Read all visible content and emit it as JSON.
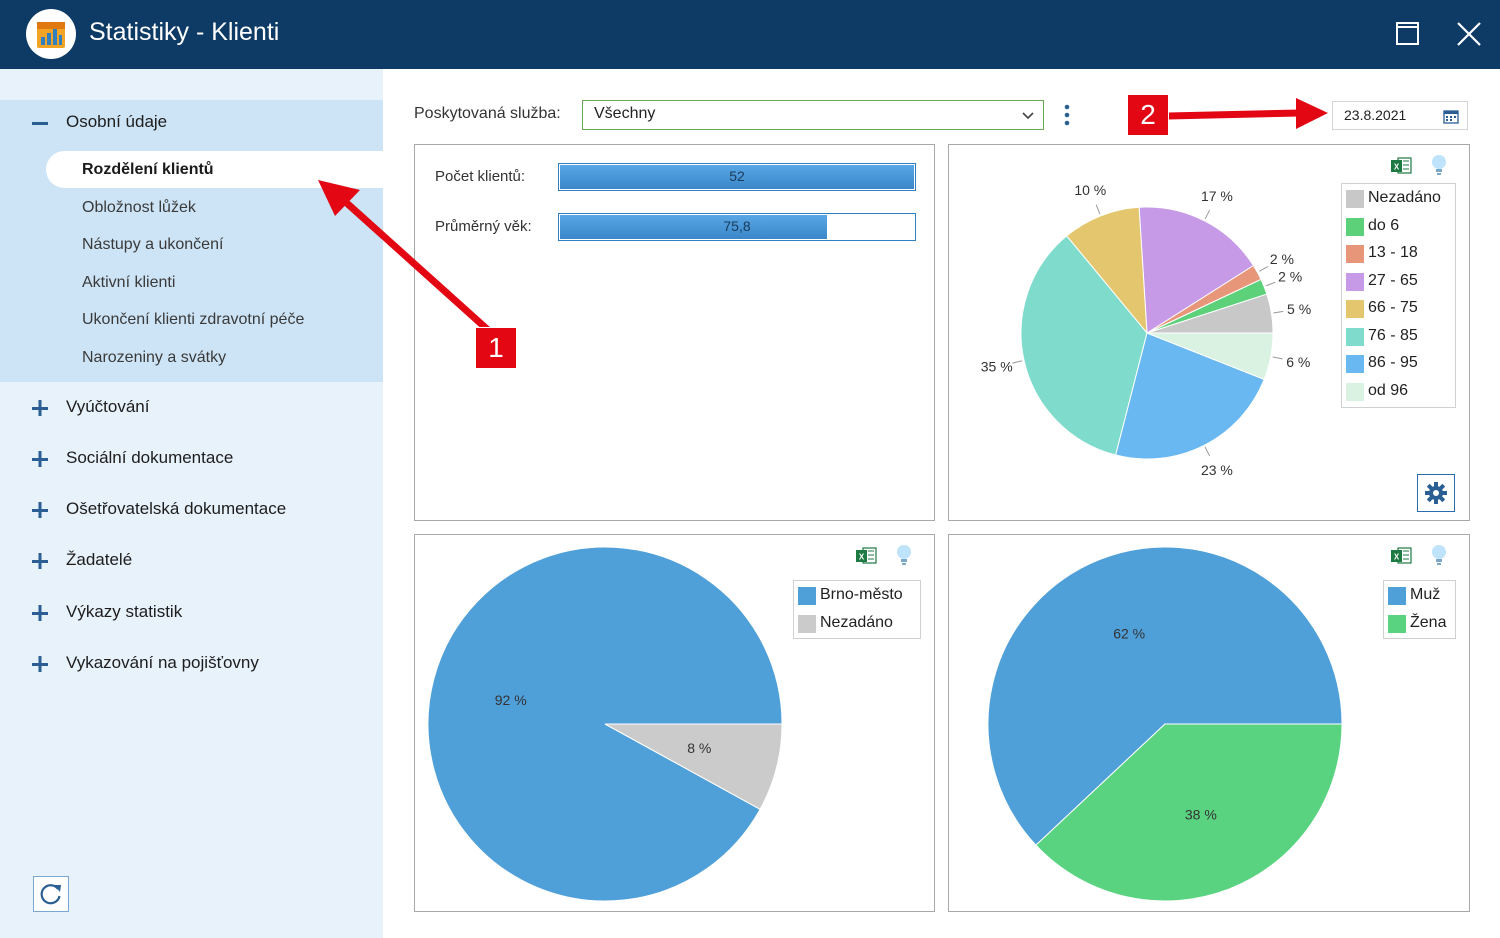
{
  "window": {
    "title": "Statistiky - Klienti",
    "icons": {
      "app": "calendar-chart-icon",
      "maximize": "maximize-icon",
      "close": "close-icon"
    }
  },
  "sidebar": {
    "open_section": {
      "label": "Osobní údaje",
      "items": [
        {
          "label": "Rozdělení klientů",
          "active": true
        },
        {
          "label": "Obložnost lůžek"
        },
        {
          "label": "Nástupy a ukončení"
        },
        {
          "label": "Aktivní klienti"
        },
        {
          "label": "Ukončení klienti zdravotní péče"
        },
        {
          "label": "Narozeniny a svátky"
        }
      ]
    },
    "collapsed_sections": [
      {
        "label": "Vyúčtování"
      },
      {
        "label": "Sociální dokumentace"
      },
      {
        "label": "Ošetřovatelská dokumentace"
      },
      {
        "label": "Žadatelé"
      },
      {
        "label": "Výkazy statistik"
      },
      {
        "label": "Vykazování na pojišťovny"
      }
    ],
    "refresh_icon": "refresh-icon"
  },
  "filter": {
    "service_label": "Poskytovaná služba:",
    "service_value": "Všechny",
    "date_value": "23.8.2021",
    "menu_icon": "kebab-menu-icon",
    "calendar_icon": "calendar-icon"
  },
  "stats": {
    "count_label": "Počet klientů:",
    "count_value": "52",
    "count_fill": 1.0,
    "age_label": "Průměrný věk:",
    "age_value": "75,8",
    "age_fill": 0.755
  },
  "colors": {
    "titlebar": "#0d3b66",
    "sidebar": "#e8f2fb",
    "sidebar_open": "#cde4f6",
    "accent": "#2f7fc1",
    "callout": "#e30613"
  },
  "annotations": [
    "1",
    "2"
  ],
  "chart_data": [
    {
      "type": "pie",
      "slices": [
        {
          "label": "Nezadáno",
          "value": 5,
          "text": "5 %",
          "color": "#c8c8c8"
        },
        {
          "label": "do 6",
          "value": 0,
          "color": "#5cd17a"
        },
        {
          "label": "13 - 18",
          "value": 2,
          "text": "2 %",
          "color": "#e8967a"
        },
        {
          "label": "27 - 65",
          "value": 17,
          "text": "17 %",
          "color": "#c79ae8"
        },
        {
          "label": "66 - 75",
          "value": 10,
          "text": "10 %",
          "color": "#e3c66e"
        },
        {
          "label": "76 - 85",
          "value": 35,
          "text": "35 %",
          "color": "#7fdccc"
        },
        {
          "label": "86 - 95",
          "value": 23,
          "text": "23 %",
          "color": "#6ab8f2"
        },
        {
          "label": "od 96",
          "value": 6,
          "text": "6 %",
          "color": "#d9f2e2"
        }
      ],
      "extra_labels": [
        {
          "text": "2 %",
          "color": "#5cd17a",
          "value": 2
        }
      ]
    },
    {
      "type": "pie",
      "slices": [
        {
          "label": "Brno-město",
          "value": 92,
          "text": "92 %",
          "color": "#4f9fd9"
        },
        {
          "label": "Nezadáno",
          "value": 8,
          "text": "8 %",
          "color": "#cbcbcb"
        }
      ]
    },
    {
      "type": "pie",
      "slices": [
        {
          "label": "Muž",
          "value": 62,
          "text": "62 %",
          "color": "#4f9fd9"
        },
        {
          "label": "Žena",
          "value": 38,
          "text": "38 %",
          "color": "#5ad381"
        }
      ]
    }
  ]
}
